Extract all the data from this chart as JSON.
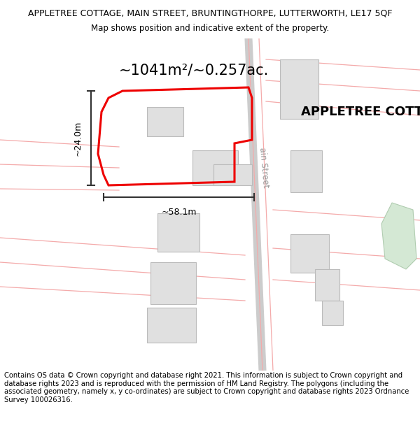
{
  "title_line1": "APPLETREE COTTAGE, MAIN STREET, BRUNTINGTHORPE, LUTTERWORTH, LE17 5QF",
  "title_line2": "Map shows position and indicative extent of the property.",
  "area_label": "~1041m²/~0.257ac.",
  "property_label": "APPLETREE COTTAGE",
  "dim_width": "~58.1m",
  "dim_height": "~24.0m",
  "street_label": "ain Street",
  "footer_text": "Contains OS data © Crown copyright and database right 2021. This information is subject to Crown copyright and database rights 2023 and is reproduced with the permission of HM Land Registry. The polygons (including the associated geometry, namely x, y co-ordinates) are subject to Crown copyright and database rights 2023 Ordnance Survey 100026316.",
  "bg_color": "#ffffff",
  "map_bg": "#ffffff",
  "building_fill": "#e0e0e0",
  "building_edge": "#bbbbbb",
  "red_line_color": "#ee0000",
  "pink_line_color": "#f4aaaa",
  "dim_line_color": "#333333",
  "title_fontsize": 9.0,
  "subtitle_fontsize": 8.5,
  "area_fontsize": 15,
  "property_label_fontsize": 13,
  "footer_fontsize": 7.2,
  "street_fontsize": 8.5
}
